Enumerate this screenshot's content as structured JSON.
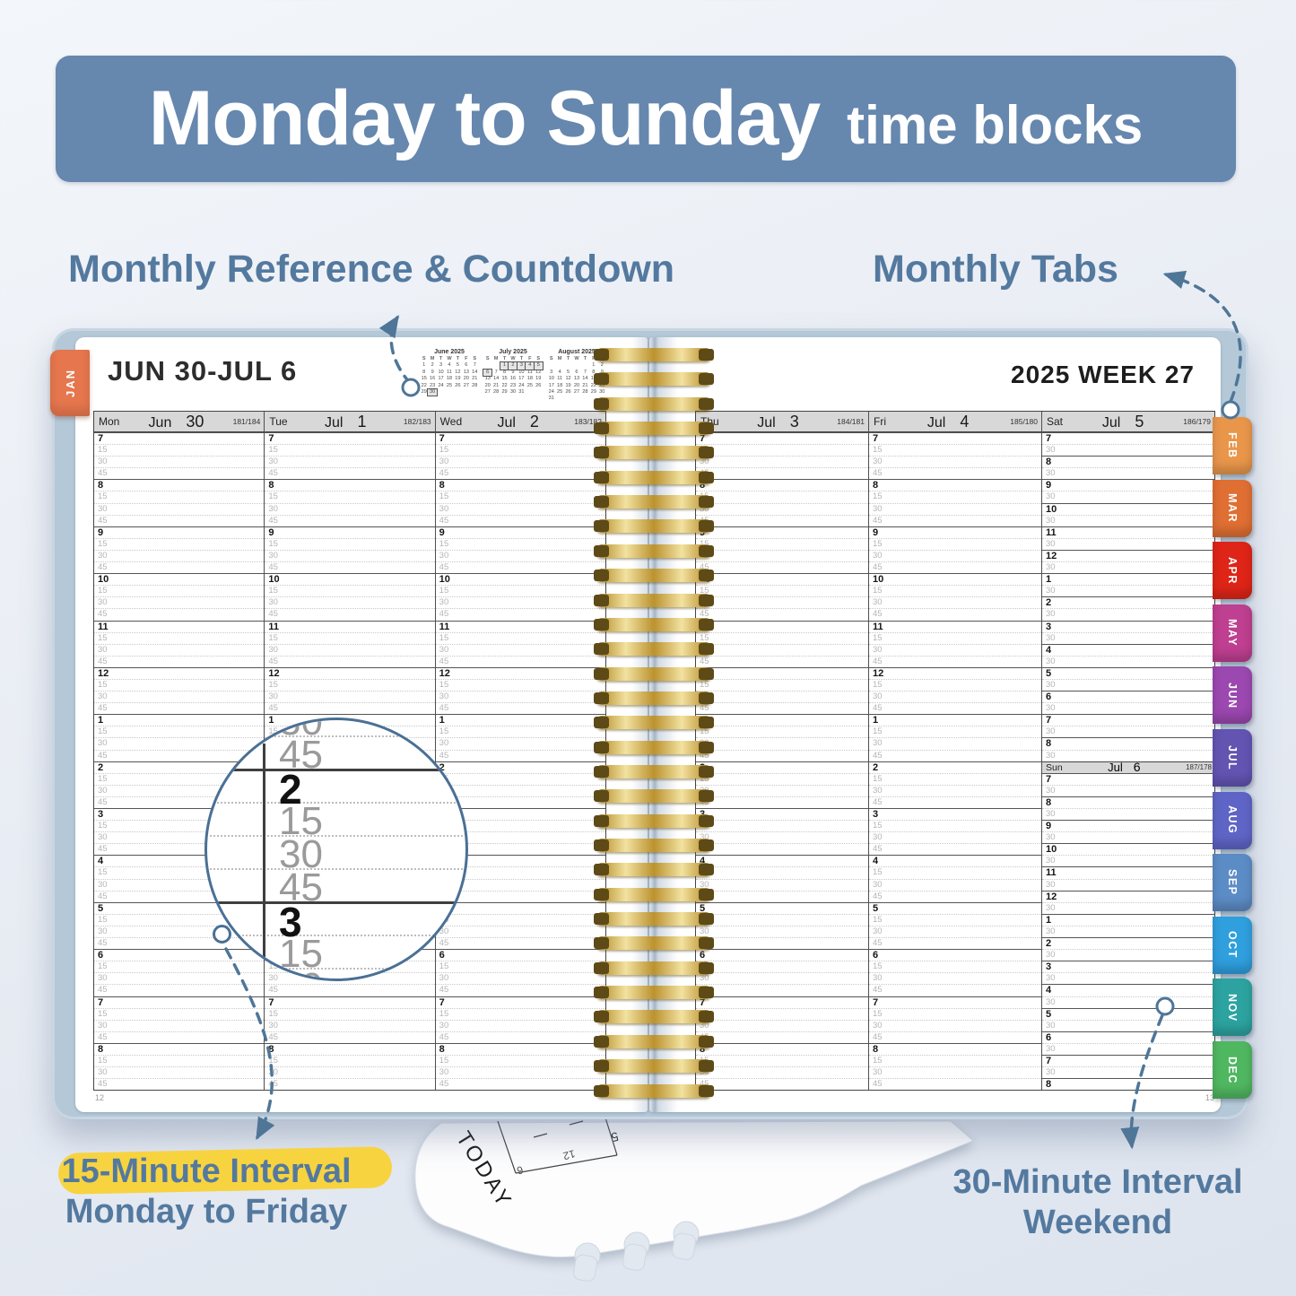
{
  "banner": {
    "title": "Monday to Sunday",
    "subtitle": "time blocks"
  },
  "callouts": {
    "monthly_reference": "Monthly Reference & Countdown",
    "monthly_tabs": "Monthly Tabs",
    "interval15_title": "15-Minute Interval",
    "interval15_sub": "Monday to Friday",
    "interval30_title": "30-Minute Interval",
    "interval30_sub": "Weekend"
  },
  "colors": {
    "banner_bg": "#6687AE",
    "callout_text": "#54799F",
    "highlight": "#F7D340",
    "arrow": "#4F7697",
    "cover": "#B4C8D8",
    "jan_tab": "#E5764D",
    "header_gray": "#D8D8D8"
  },
  "left_page": {
    "month_tab": "JAN",
    "week_range": "JUN 30-JUL 6",
    "page_number": "12"
  },
  "right_page": {
    "year_week": "2025  WEEK 27",
    "page_number": "13"
  },
  "mini_calendars": [
    {
      "title": "June 2025",
      "dow": [
        "S",
        "M",
        "T",
        "W",
        "T",
        "F",
        "S"
      ],
      "weeks": [
        [
          "1",
          "2",
          "3",
          "4",
          "5",
          "6",
          "7"
        ],
        [
          "8",
          "9",
          "10",
          "11",
          "12",
          "13",
          "14"
        ],
        [
          "15",
          "16",
          "17",
          "18",
          "19",
          "20",
          "21"
        ],
        [
          "22",
          "23",
          "24",
          "25",
          "26",
          "27",
          "28"
        ],
        [
          "29",
          "30",
          "",
          "",
          "",
          "",
          ""
        ]
      ],
      "highlight": [
        30
      ]
    },
    {
      "title": "July 2025",
      "dow": [
        "S",
        "M",
        "T",
        "W",
        "T",
        "F",
        "S"
      ],
      "weeks": [
        [
          "",
          "",
          "1",
          "2",
          "3",
          "4",
          "5"
        ],
        [
          "6",
          "7",
          "8",
          "9",
          "10",
          "11",
          "12"
        ],
        [
          "13",
          "14",
          "15",
          "16",
          "17",
          "18",
          "19"
        ],
        [
          "20",
          "21",
          "22",
          "23",
          "24",
          "25",
          "26"
        ],
        [
          "27",
          "28",
          "29",
          "30",
          "31",
          "",
          ""
        ]
      ],
      "highlight": [
        1,
        2,
        3,
        4,
        5,
        6
      ]
    },
    {
      "title": "August 2025",
      "dow": [
        "S",
        "M",
        "T",
        "W",
        "T",
        "F",
        "S"
      ],
      "weeks": [
        [
          "",
          "",
          "",
          "",
          "",
          "1",
          "2"
        ],
        [
          "3",
          "4",
          "5",
          "6",
          "7",
          "8",
          "9"
        ],
        [
          "10",
          "11",
          "12",
          "13",
          "14",
          "15",
          "16"
        ],
        [
          "17",
          "18",
          "19",
          "20",
          "21",
          "22",
          "23"
        ],
        [
          "24",
          "25",
          "26",
          "27",
          "28",
          "29",
          "30"
        ],
        [
          "31",
          "",
          "",
          "",
          "",
          "",
          ""
        ]
      ],
      "highlight": []
    }
  ],
  "grid": {
    "quarter_labels": [
      "15",
      "30",
      "45"
    ],
    "half_label": "30",
    "hours": [
      "7",
      "8",
      "9",
      "10",
      "11",
      "12",
      "1",
      "2",
      "3",
      "4",
      "5",
      "6",
      "7",
      "8"
    ],
    "sun_hours": [
      "7",
      "8",
      "9",
      "10",
      "11",
      "12",
      "1",
      "2",
      "3",
      "4",
      "5",
      "6",
      "7",
      "8"
    ],
    "days_left": [
      {
        "abbr": "Mon",
        "month": "Jun",
        "day": "30",
        "countdown": "181/184"
      },
      {
        "abbr": "Tue",
        "month": "Jul",
        "day": "1",
        "countdown": "182/183"
      },
      {
        "abbr": "Wed",
        "month": "Jul",
        "day": "2",
        "countdown": "183/182"
      }
    ],
    "days_right": [
      {
        "abbr": "Thu",
        "month": "Jul",
        "day": "3",
        "countdown": "184/181"
      },
      {
        "abbr": "Fri",
        "month": "Jul",
        "day": "4",
        "countdown": "185/180"
      }
    ],
    "saturday": {
      "abbr": "Sat",
      "month": "Jul",
      "day": "5",
      "countdown": "186/179"
    },
    "sunday": {
      "abbr": "Sun",
      "month": "Jul",
      "day": "6",
      "countdown": "187/178"
    }
  },
  "tabs": [
    {
      "label": "FEB",
      "color": "#E9964B"
    },
    {
      "label": "MAR",
      "color": "#E06F33"
    },
    {
      "label": "APR",
      "color": "#DE2517"
    },
    {
      "label": "MAY",
      "color": "#BF3F90"
    },
    {
      "label": "JUN",
      "color": "#9B48B0"
    },
    {
      "label": "JUL",
      "color": "#6354B2"
    },
    {
      "label": "AUG",
      "color": "#5F65C6"
    },
    {
      "label": "SEP",
      "color": "#5C8CC6"
    },
    {
      "label": "OCT",
      "color": "#2F9FDE"
    },
    {
      "label": "NOV",
      "color": "#2CA3A0"
    },
    {
      "label": "DEC",
      "color": "#50B761"
    }
  ],
  "magnifier": {
    "rows": [
      {
        "label": "30",
        "bold": false,
        "line": "dot"
      },
      {
        "label": "45",
        "bold": false,
        "line": "dot"
      },
      {
        "label": "2",
        "bold": true,
        "line": "solid"
      },
      {
        "label": "15",
        "bold": false,
        "line": "dot"
      },
      {
        "label": "30",
        "bold": false,
        "line": "dot"
      },
      {
        "label": "45",
        "bold": false,
        "line": "dot"
      },
      {
        "label": "3",
        "bold": true,
        "line": "solid"
      },
      {
        "label": "15",
        "bold": false,
        "line": "dot"
      },
      {
        "label": "30",
        "bold": false,
        "line": "dot"
      }
    ]
  },
  "ruler": {
    "label": "TODAY"
  }
}
